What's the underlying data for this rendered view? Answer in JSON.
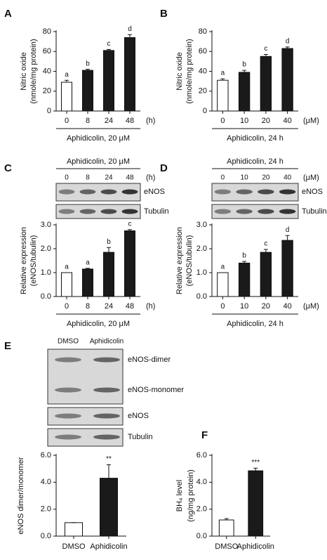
{
  "chart_data": [
    {
      "type": "bar",
      "panel": "A",
      "y_label": [
        "Nitric oxide",
        "(nmole/mg protein)"
      ],
      "x_label": "Aphidicolin, 20 μM",
      "x_unit": "(h)",
      "categories": [
        "0",
        "8",
        "24",
        "48"
      ],
      "values": [
        29,
        41,
        61,
        74
      ],
      "errors": [
        2,
        1,
        1,
        3
      ],
      "annotations": [
        "a",
        "b",
        "c",
        "d"
      ],
      "colors": [
        "#ffffff",
        "#1a1a1a",
        "#1a1a1a",
        "#1a1a1a"
      ],
      "ylim": [
        0,
        80
      ],
      "yticks": [
        0,
        20,
        40,
        60,
        80
      ]
    },
    {
      "type": "bar",
      "panel": "B",
      "y_label": [
        "Nitric oxide",
        "(nmole/mg protein)"
      ],
      "x_label": "Aphidicolin, 24 h",
      "x_unit": "(μM)",
      "categories": [
        "0",
        "10",
        "20",
        "40"
      ],
      "values": [
        31,
        39,
        55,
        63
      ],
      "errors": [
        1.5,
        2,
        2,
        1.5
      ],
      "annotations": [
        "a",
        "b",
        "c",
        "d"
      ],
      "colors": [
        "#ffffff",
        "#1a1a1a",
        "#1a1a1a",
        "#1a1a1a"
      ],
      "ylim": [
        0,
        80
      ],
      "yticks": [
        0,
        20,
        40,
        60,
        80
      ]
    },
    {
      "type": "bar",
      "panel": "C",
      "y_label": [
        "Relative expression",
        "(eNOS/tubulin)"
      ],
      "x_label": "Aphidicolin, 20 μM",
      "x_unit": "(h)",
      "blot": {
        "bands": [
          "eNOS",
          "Tubulin"
        ]
      },
      "categories": [
        "0",
        "8",
        "24",
        "48"
      ],
      "values": [
        1.0,
        1.15,
        1.85,
        2.75
      ],
      "errors": [
        0,
        0.03,
        0.2,
        0.05
      ],
      "annotations": [
        "a",
        "a",
        "b",
        "c"
      ],
      "colors": [
        "#ffffff",
        "#1a1a1a",
        "#1a1a1a",
        "#1a1a1a"
      ],
      "ylim": [
        0,
        3
      ],
      "yticks": [
        {
          "value": 0,
          "label": "0.0"
        },
        {
          "value": 1,
          "label": "1.0"
        },
        {
          "value": 2,
          "label": "2.0"
        },
        {
          "value": 3,
          "label": "3.0"
        }
      ]
    },
    {
      "type": "bar",
      "panel": "D",
      "y_label": [
        "Relative expression",
        "(eNOS/tubulin)"
      ],
      "x_label": "Aphidicolin, 24 h",
      "x_unit": "(μM)",
      "blot": {
        "bands": [
          "eNOS",
          "Tubulin"
        ]
      },
      "categories": [
        "0",
        "10",
        "20",
        "40"
      ],
      "values": [
        1.0,
        1.4,
        1.85,
        2.35
      ],
      "errors": [
        0,
        0.07,
        0.12,
        0.2
      ],
      "annotations": [
        "a",
        "b",
        "c",
        "d"
      ],
      "colors": [
        "#ffffff",
        "#1a1a1a",
        "#1a1a1a",
        "#1a1a1a"
      ],
      "ylim": [
        0,
        3
      ],
      "yticks": [
        {
          "value": 0,
          "label": "0.0"
        },
        {
          "value": 1,
          "label": "1.0"
        },
        {
          "value": 2,
          "label": "2.0"
        },
        {
          "value": 3,
          "label": "3.0"
        }
      ]
    },
    {
      "type": "bar",
      "panel": "E",
      "y_label": [
        "eNOS dimer/monomer"
      ],
      "blot": {
        "bands": [
          "eNOS-dimer",
          "eNOS-monomer",
          "eNOS",
          "Tubulin"
        ]
      },
      "categories": [
        "DMSO",
        "Aphidicolin"
      ],
      "values": [
        1.0,
        4.3
      ],
      "errors": [
        0,
        1.0
      ],
      "annotations": [
        null,
        "**"
      ],
      "colors": [
        "#ffffff",
        "#1a1a1a"
      ],
      "ylim": [
        0,
        6
      ],
      "yticks": [
        {
          "value": 0,
          "label": "0.0"
        },
        {
          "value": 2,
          "label": "2.0"
        },
        {
          "value": 4,
          "label": "4.0"
        },
        {
          "value": 6,
          "label": "6.0"
        }
      ]
    },
    {
      "type": "bar",
      "panel": "F",
      "y_label": [
        "BH₄ level",
        "(ng/mg protein)"
      ],
      "categories": [
        "DMSO",
        "Aphidicolin"
      ],
      "values": [
        1.2,
        4.85
      ],
      "errors": [
        0.1,
        0.2
      ],
      "annotations": [
        null,
        "***"
      ],
      "colors": [
        "#ffffff",
        "#1a1a1a"
      ],
      "ylim": [
        0,
        6
      ],
      "yticks": [
        {
          "value": 0,
          "label": "0.0"
        },
        {
          "value": 2,
          "label": "2.0"
        },
        {
          "value": 4,
          "label": "4.0"
        },
        {
          "value": 6,
          "label": "6.0"
        }
      ]
    }
  ]
}
